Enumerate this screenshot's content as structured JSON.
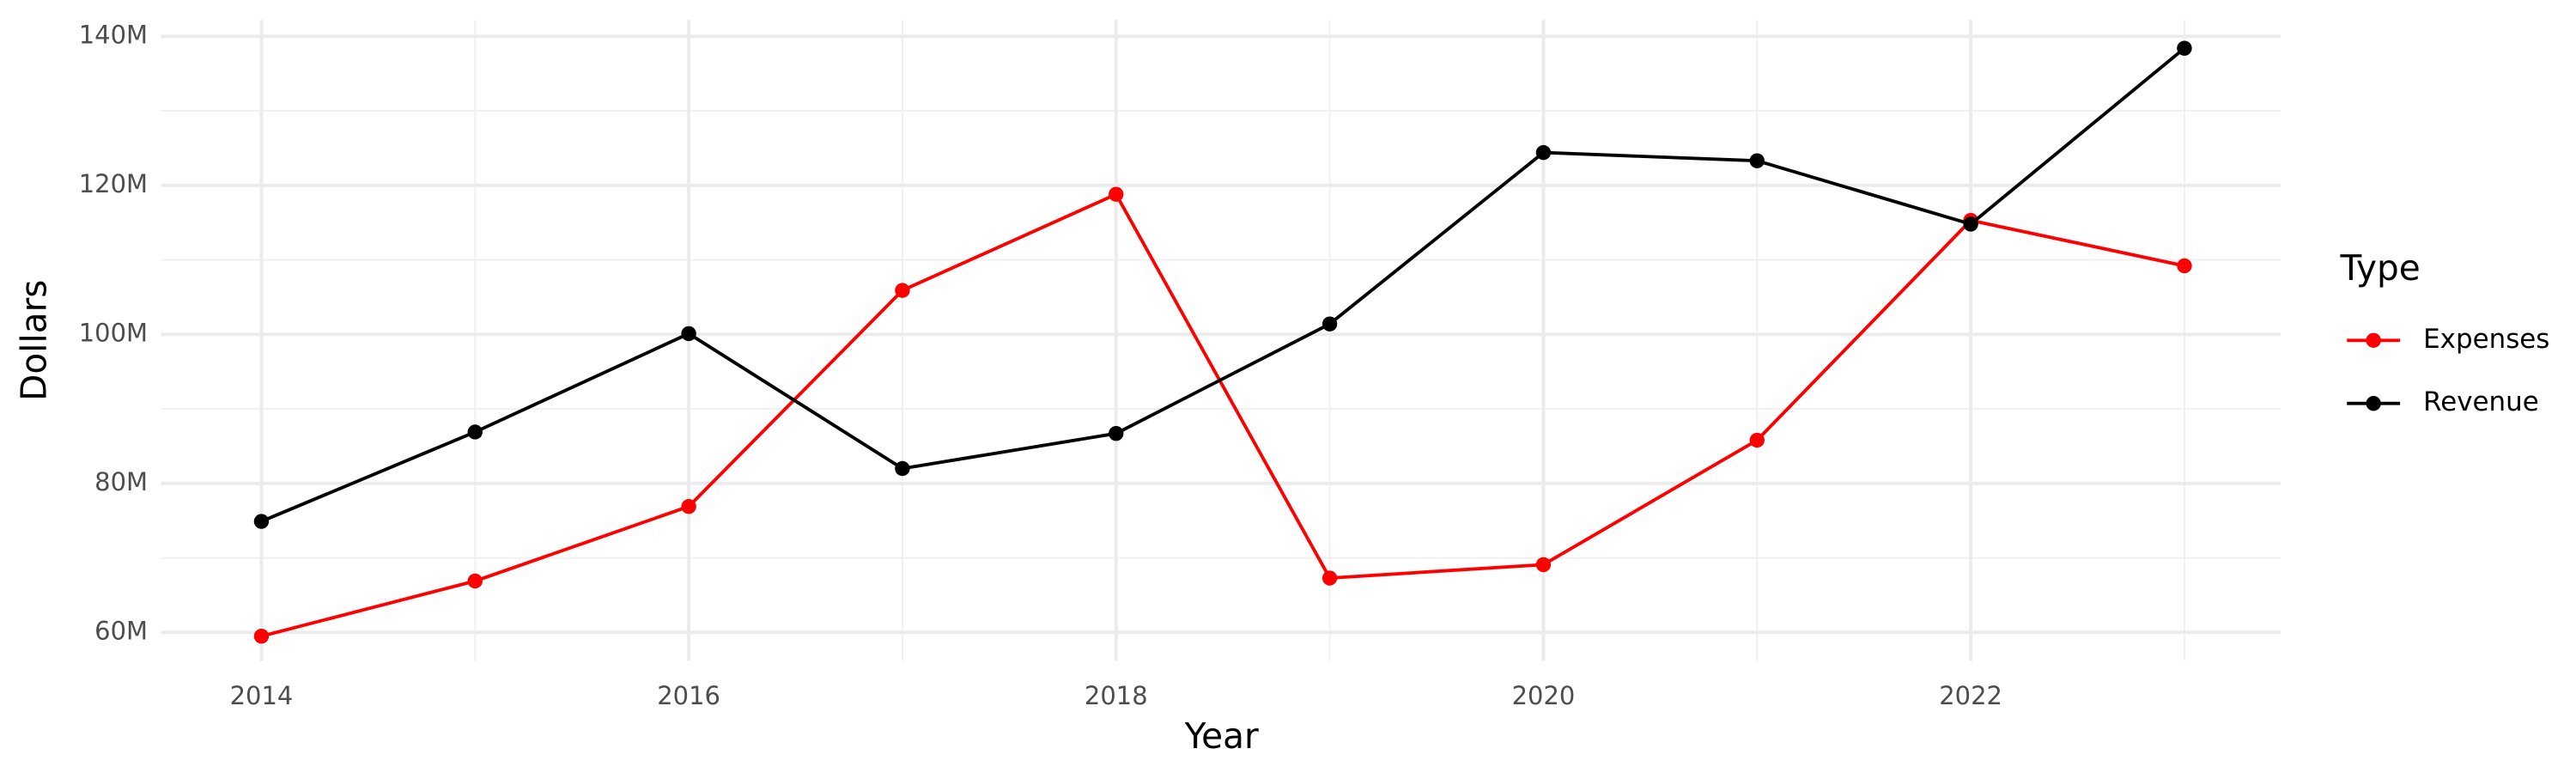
{
  "chart_data": {
    "type": "line",
    "x_label": "Year",
    "y_label": "Dollars",
    "legend_title": "Type",
    "legend": "right",
    "grid": true,
    "x": [
      2014,
      2015,
      2016,
      2017,
      2018,
      2019,
      2020,
      2021,
      2022,
      2023
    ],
    "series": [
      {
        "name": "Expenses",
        "color": "#ff0000",
        "values": [
          59500000,
          66900000,
          76900000,
          105900000,
          118800000,
          67300000,
          69100000,
          85800000,
          115300000,
          109200000
        ]
      },
      {
        "name": "Revenue",
        "color": "#000000",
        "values": [
          74900000,
          86900000,
          100100000,
          82000000,
          86700000,
          101400000,
          124400000,
          123300000,
          114800000,
          138400000
        ]
      }
    ],
    "xlim": [
      2013.53,
      2023.45
    ],
    "xticks": [
      2014,
      2016,
      2018,
      2020,
      2022
    ],
    "ylim": [
      56200000,
      142200000
    ],
    "yticks": [
      {
        "value": 60000000,
        "label": "60M"
      },
      {
        "value": 80000000,
        "label": "80M"
      },
      {
        "value": 100000000,
        "label": "100M"
      },
      {
        "value": 120000000,
        "label": "120M"
      },
      {
        "value": 140000000,
        "label": "140M"
      }
    ]
  }
}
